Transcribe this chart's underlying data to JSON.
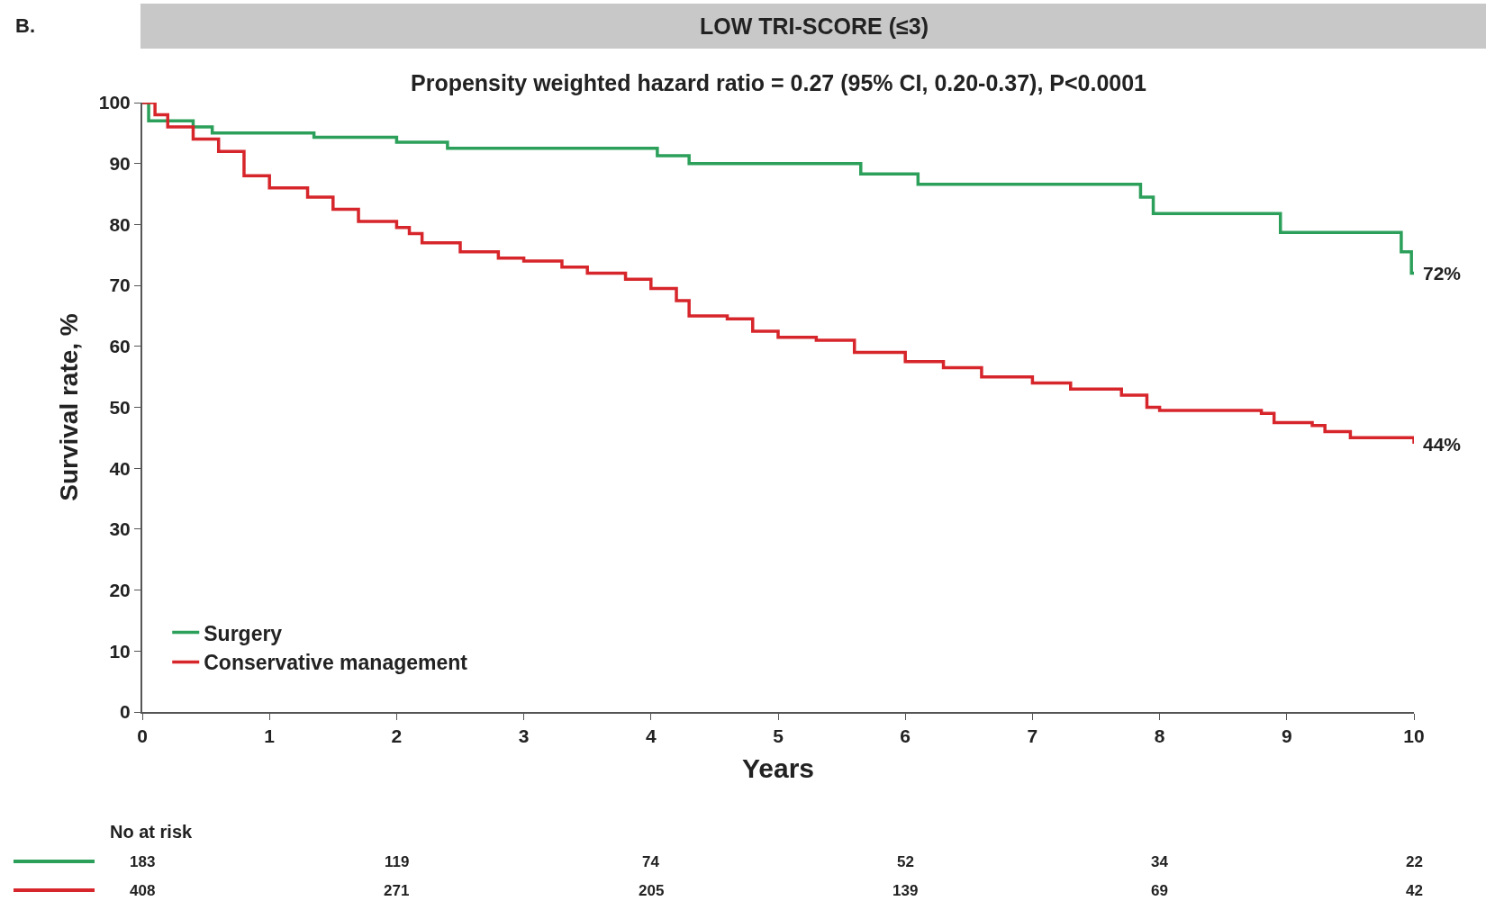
{
  "chart_data": [
    {
      "type": "step",
      "title": "LOW TRI-SCORE (≤3)",
      "subtitle": "Propensity weighted hazard ratio = 0.27 (95% CI, 0.20-0.37), P<0.0001",
      "xlabel": "Years",
      "ylabel": "Survival rate, %",
      "xlim": [
        0,
        10
      ],
      "xticks": [
        0,
        1,
        2,
        3,
        4,
        5,
        6,
        7,
        8,
        9,
        10
      ],
      "ylim": [
        0,
        100
      ],
      "yticks": [
        0,
        10,
        20,
        30,
        40,
        50,
        60,
        70,
        80,
        90,
        100
      ],
      "legend": "bottom left",
      "annotations": [
        "B.",
        {
          "text": "72%",
          "x": 10,
          "y": 72
        },
        {
          "text": "44%",
          "x": 10,
          "y": 44
        }
      ],
      "series": [
        {
          "name": "Surgery",
          "color": "#2ca05a",
          "x": [
            0,
            0.05,
            0.4,
            0.55,
            1.35,
            2.0,
            2.4,
            4.05,
            4.3,
            5.65,
            6.1,
            7.85,
            7.95,
            8.95,
            9.9,
            9.98,
            10
          ],
          "values": [
            100,
            97,
            96,
            95,
            94.3,
            93.5,
            92.5,
            91.3,
            90,
            88.3,
            86.6,
            84.5,
            81.8,
            78.7,
            75.5,
            72,
            72
          ]
        },
        {
          "name": "Conservative management",
          "color": "#d7262b",
          "x": [
            0,
            0.1,
            0.2,
            0.4,
            0.6,
            0.8,
            1,
            1.3,
            1.5,
            1.7,
            2,
            2.1,
            2.2,
            2.5,
            2.8,
            3,
            3.3,
            3.5,
            3.8,
            4,
            4.2,
            4.3,
            4.6,
            4.8,
            5,
            5.3,
            5.6,
            6,
            6.3,
            6.6,
            7,
            7.3,
            7.7,
            7.9,
            8,
            8.5,
            8.8,
            8.9,
            9.2,
            9.3,
            9.5,
            9.9,
            10
          ],
          "values": [
            100,
            98,
            96,
            94,
            92,
            88,
            86,
            84.5,
            82.5,
            80.5,
            79.5,
            78.5,
            77,
            75.5,
            74.5,
            74,
            73,
            72,
            71,
            69.5,
            67.5,
            65,
            64.5,
            62.5,
            61.5,
            61,
            59,
            57.5,
            56.5,
            55,
            54,
            53,
            52,
            50,
            49.5,
            49.5,
            49,
            47.5,
            47,
            46,
            45,
            45,
            44
          ]
        }
      ]
    },
    {
      "type": "other",
      "title": "No at risk",
      "annotations": [
        "183",
        "119",
        "74",
        "52",
        "34",
        "22",
        "408",
        "271",
        "205",
        "139",
        "69",
        "42"
      ]
    }
  ]
}
